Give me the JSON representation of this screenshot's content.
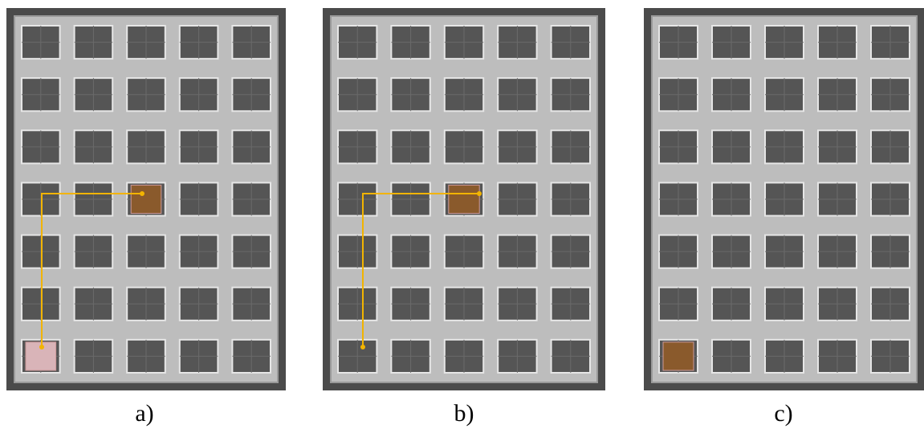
{
  "panels": [
    {
      "caption": "a)"
    },
    {
      "caption": "b)"
    },
    {
      "caption": "c)"
    }
  ]
}
